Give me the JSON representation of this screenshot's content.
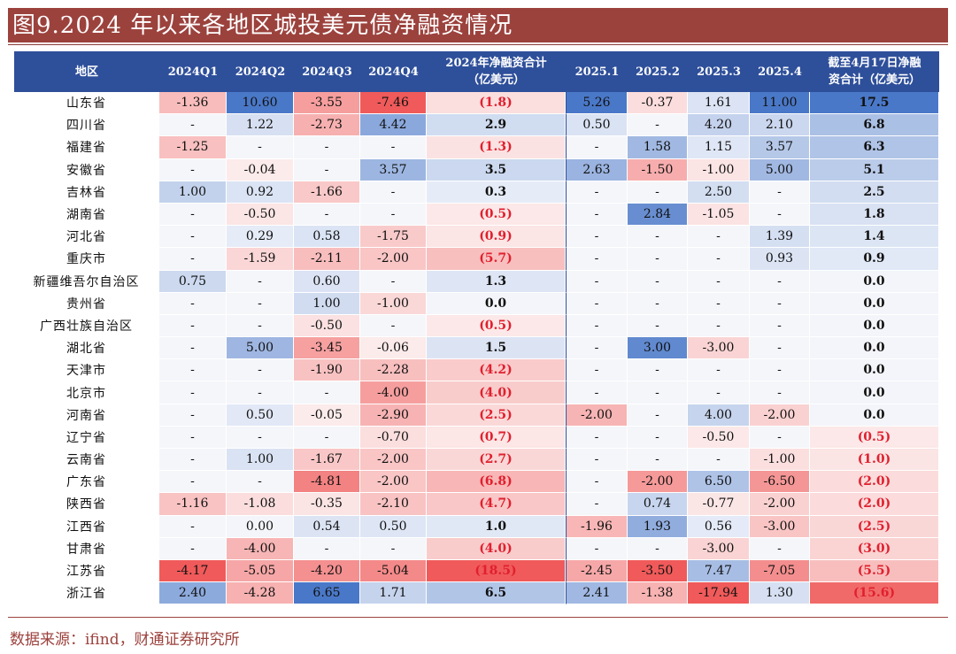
{
  "title": "图9.2024 年以来各地区城投美元债净融资情况",
  "source": "数据来源：ifind，财通证券研究所",
  "colors": {
    "title_bg": "#9c423d",
    "header_bg": "#2e4f9a",
    "positive": "#4a78c8",
    "negative": "#f05a5a"
  },
  "chart_data": {
    "type": "table",
    "columns": [
      "地区",
      "2024Q1",
      "2024Q2",
      "2024Q3",
      "2024Q4",
      "2024年净融资合计\n（亿美元）",
      "2025.1",
      "2025.2",
      "2025.3",
      "2025.4",
      "截至4月17日净融\n资合计（亿美元）"
    ],
    "rows": [
      [
        "山东省",
        "-1.36",
        "10.60",
        "-3.55",
        "-7.46",
        "(1.8)",
        "5.26",
        "-0.37",
        "1.61",
        "11.00",
        "17.5"
      ],
      [
        "四川省",
        "-",
        "1.22",
        "-2.73",
        "4.42",
        "2.9",
        "0.50",
        "-",
        "4.20",
        "2.10",
        "6.8"
      ],
      [
        "福建省",
        "-1.25",
        "-",
        "-",
        "-",
        "(1.3)",
        "-",
        "1.58",
        "1.15",
        "3.57",
        "6.3"
      ],
      [
        "安徽省",
        "-",
        "-0.04",
        "-",
        "3.57",
        "3.5",
        "2.63",
        "-1.50",
        "-1.00",
        "5.00",
        "5.1"
      ],
      [
        "吉林省",
        "1.00",
        "0.92",
        "-1.66",
        "-",
        "0.3",
        "-",
        "-",
        "2.50",
        "-",
        "2.5"
      ],
      [
        "湖南省",
        "-",
        "-0.50",
        "-",
        "-",
        "(0.5)",
        "-",
        "2.84",
        "-1.05",
        "-",
        "1.8"
      ],
      [
        "河北省",
        "-",
        "0.29",
        "0.58",
        "-1.75",
        "(0.9)",
        "-",
        "-",
        "-",
        "1.39",
        "1.4"
      ],
      [
        "重庆市",
        "-",
        "-1.59",
        "-2.11",
        "-2.00",
        "(5.7)",
        "-",
        "-",
        "-",
        "0.93",
        "0.9"
      ],
      [
        "新疆维吾尔自治区",
        "0.75",
        "-",
        "0.60",
        "-",
        "1.3",
        "-",
        "-",
        "-",
        "-",
        "0.0"
      ],
      [
        "贵州省",
        "-",
        "-",
        "1.00",
        "-1.00",
        "0.0",
        "-",
        "-",
        "-",
        "-",
        "0.0"
      ],
      [
        "广西壮族自治区",
        "-",
        "-",
        "-0.50",
        "-",
        "(0.5)",
        "-",
        "-",
        "-",
        "-",
        "0.0"
      ],
      [
        "湖北省",
        "-",
        "5.00",
        "-3.45",
        "-0.06",
        "1.5",
        "-",
        "3.00",
        "-3.00",
        "-",
        "0.0"
      ],
      [
        "天津市",
        "-",
        "-",
        "-1.90",
        "-2.28",
        "(4.2)",
        "-",
        "-",
        "-",
        "-",
        "0.0"
      ],
      [
        "北京市",
        "-",
        "-",
        "-",
        "-4.00",
        "(4.0)",
        "-",
        "-",
        "-",
        "-",
        "0.0"
      ],
      [
        "河南省",
        "-",
        "0.50",
        "-0.05",
        "-2.90",
        "(2.5)",
        "-2.00",
        "-",
        "4.00",
        "-2.00",
        "0.0"
      ],
      [
        "辽宁省",
        "-",
        "-",
        "-",
        "-0.70",
        "(0.7)",
        "-",
        "-",
        "-0.50",
        "-",
        "(0.5)"
      ],
      [
        "云南省",
        "-",
        "1.00",
        "-1.67",
        "-2.00",
        "(2.7)",
        "-",
        "-",
        "-",
        "-1.00",
        "(1.0)"
      ],
      [
        "广东省",
        "-",
        "-",
        "-4.81",
        "-2.00",
        "(6.8)",
        "-",
        "-2.00",
        "6.50",
        "-6.50",
        "(2.0)"
      ],
      [
        "陕西省",
        "-1.16",
        "-1.08",
        "-0.35",
        "-2.10",
        "(4.7)",
        "-",
        "0.74",
        "-0.77",
        "-2.00",
        "(2.0)"
      ],
      [
        "江西省",
        "-",
        "0.00",
        "0.54",
        "0.50",
        "1.0",
        "-1.96",
        "1.93",
        "0.56",
        "-3.00",
        "(2.5)"
      ],
      [
        "甘肃省",
        "-",
        "-4.00",
        "-",
        "-",
        "(4.0)",
        "-",
        "-",
        "-3.00",
        "-",
        "(3.0)"
      ],
      [
        "江苏省",
        "-4.17",
        "-5.05",
        "-4.20",
        "-5.04",
        "(18.5)",
        "-2.45",
        "-3.50",
        "7.47",
        "-7.05",
        "(5.5)"
      ],
      [
        "浙江省",
        "2.40",
        "-4.28",
        "6.65",
        "1.71",
        "6.5",
        "2.41",
        "-1.38",
        "-17.94",
        "1.30",
        "(15.6)"
      ]
    ]
  }
}
